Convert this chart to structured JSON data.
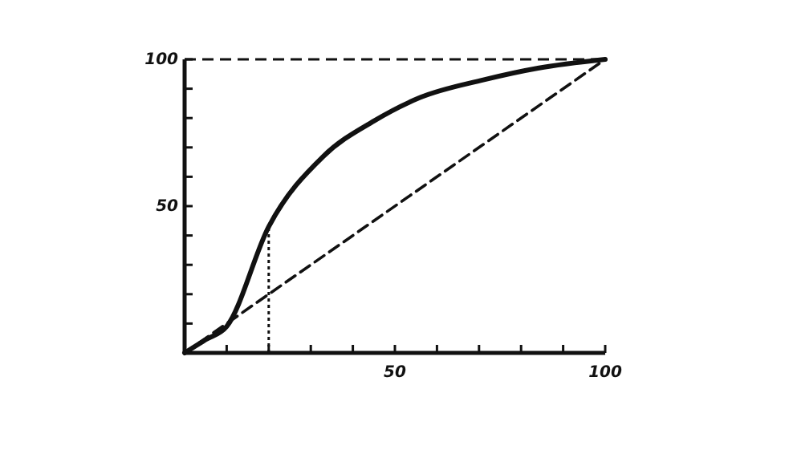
{
  "chart_data": {
    "type": "line",
    "xlim": [
      0,
      100
    ],
    "ylim": [
      0,
      100
    ],
    "xticks": [
      {
        "value": 0,
        "label": null
      },
      {
        "value": 10,
        "label": null
      },
      {
        "value": 20,
        "label": null
      },
      {
        "value": 30,
        "label": null
      },
      {
        "value": 40,
        "label": null
      },
      50,
      {
        "value": 60,
        "label": null
      },
      {
        "value": 70,
        "label": null
      },
      {
        "value": 80,
        "label": null
      },
      {
        "value": 90,
        "label": null
      },
      100
    ],
    "yticks": [
      {
        "value": 0,
        "label": null
      },
      {
        "value": 10,
        "label": null
      },
      {
        "value": 20,
        "label": null
      },
      {
        "value": 30,
        "label": null
      },
      {
        "value": 40,
        "label": null
      },
      50,
      {
        "value": 60,
        "label": null
      },
      {
        "value": 70,
        "label": null
      },
      {
        "value": 80,
        "label": null
      },
      {
        "value": 90,
        "label": null
      },
      100
    ],
    "series": [
      {
        "color": "#111111",
        "line_style": "solid",
        "x": [
          0,
          5,
          10,
          20,
          33,
          45,
          56,
          71,
          84,
          100
        ],
        "values": [
          0,
          4.5,
          9,
          43,
          67,
          79,
          87,
          93,
          97,
          100
        ]
      },
      {
        "color": "#111111",
        "line_style": "dashed",
        "x": [
          0,
          100
        ],
        "values": [
          0,
          100
        ]
      }
    ],
    "ref_lines": [
      {
        "axis": "x",
        "value": 20,
        "line_style": "dotted",
        "color": "#111111"
      },
      {
        "axis": "y",
        "value": 100,
        "line_style": "dashed",
        "color": "#111111"
      }
    ],
    "grid": false,
    "marker": "none"
  }
}
